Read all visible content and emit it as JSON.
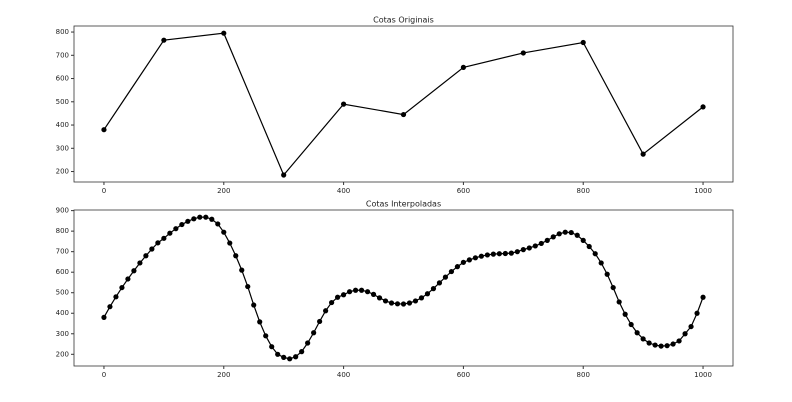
{
  "chart_data": [
    {
      "type": "line",
      "title": "Cotas Originais",
      "x": [
        0,
        100,
        200,
        300,
        400,
        500,
        600,
        700,
        800,
        900,
        1000
      ],
      "values": [
        380,
        765,
        795,
        185,
        490,
        445,
        648,
        710,
        755,
        275,
        478
      ],
      "color": "#000000",
      "markers": true,
      "xlim": [
        -50,
        1050
      ],
      "ylim": [
        155,
        826
      ],
      "xticks": [
        0,
        200,
        400,
        600,
        800,
        1000
      ],
      "yticks": [
        200,
        300,
        400,
        500,
        600,
        700,
        800
      ]
    },
    {
      "type": "line",
      "title": "Cotas Interpoladas",
      "x": [
        0,
        10,
        20,
        30,
        40,
        50,
        60,
        70,
        80,
        90,
        100,
        110,
        120,
        130,
        140,
        150,
        160,
        170,
        180,
        190,
        200,
        210,
        220,
        230,
        240,
        250,
        260,
        270,
        280,
        290,
        300,
        310,
        320,
        330,
        340,
        350,
        360,
        370,
        380,
        390,
        400,
        410,
        420,
        430,
        440,
        450,
        460,
        470,
        480,
        490,
        500,
        510,
        520,
        530,
        540,
        550,
        560,
        570,
        580,
        590,
        600,
        610,
        620,
        630,
        640,
        650,
        660,
        670,
        680,
        690,
        700,
        710,
        720,
        730,
        740,
        750,
        760,
        770,
        780,
        790,
        800,
        810,
        820,
        830,
        840,
        850,
        860,
        870,
        880,
        890,
        900,
        910,
        920,
        930,
        940,
        950,
        960,
        970,
        980,
        990,
        1000
      ],
      "values": [
        380,
        432,
        480,
        525,
        567,
        607,
        645,
        680,
        713,
        743,
        765,
        790,
        812,
        832,
        848,
        860,
        868,
        868,
        858,
        835,
        795,
        742,
        680,
        610,
        530,
        440,
        358,
        290,
        237,
        200,
        185,
        178,
        188,
        213,
        255,
        305,
        360,
        412,
        452,
        478,
        490,
        505,
        512,
        512,
        505,
        492,
        475,
        460,
        450,
        446,
        445,
        450,
        460,
        475,
        495,
        520,
        548,
        576,
        603,
        627,
        648,
        660,
        670,
        678,
        684,
        688,
        690,
        691,
        693,
        700,
        710,
        718,
        728,
        740,
        755,
        772,
        787,
        795,
        793,
        780,
        755,
        725,
        690,
        645,
        590,
        525,
        455,
        395,
        345,
        305,
        275,
        255,
        245,
        240,
        242,
        250,
        265,
        300,
        335,
        400,
        478
      ],
      "color": "#000000",
      "markers": true,
      "xlim": [
        -50,
        1050
      ],
      "ylim": [
        143,
        903
      ],
      "xticks": [
        0,
        200,
        400,
        600,
        800,
        1000
      ],
      "yticks": [
        200,
        300,
        400,
        500,
        600,
        700,
        800,
        900
      ]
    }
  ]
}
